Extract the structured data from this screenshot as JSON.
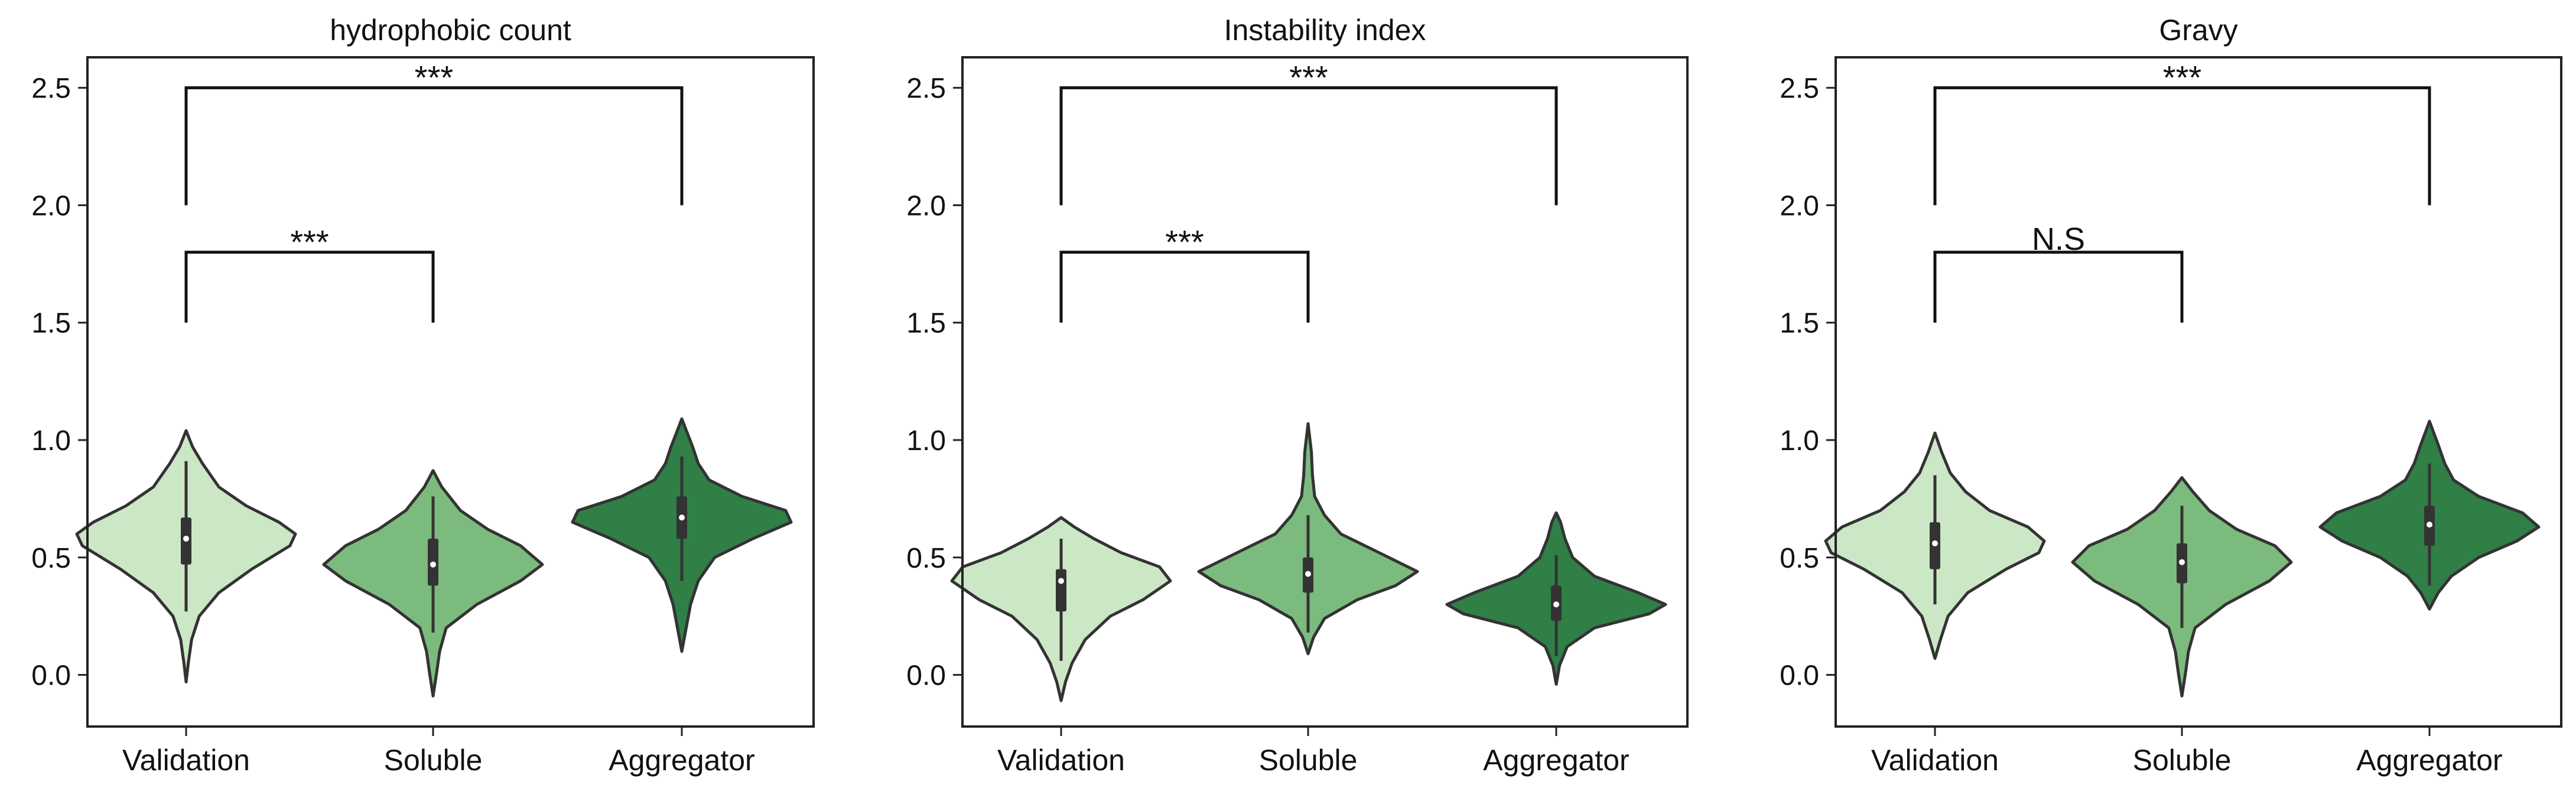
{
  "chart_data": [
    {
      "type": "violin",
      "title": "hydrophobic count",
      "categories": [
        "Validation",
        "Soluble",
        "Aggregator"
      ],
      "ylim": [
        -0.22,
        2.63
      ],
      "yticks": [
        "0.0",
        "0.5",
        "1.0",
        "1.5",
        "2.0",
        "2.5"
      ],
      "ytick_values": [
        0.0,
        0.5,
        1.0,
        1.5,
        2.0,
        2.5
      ],
      "violins": [
        {
          "category": "Validation",
          "extent": [
            -0.03,
            1.04
          ],
          "median": 0.58,
          "q1": 0.47,
          "q3": 0.67,
          "whisker": [
            0.27,
            0.91
          ],
          "profile": [
            [
              -0.03,
              0.0
            ],
            [
              0.05,
              0.02
            ],
            [
              0.15,
              0.05
            ],
            [
              0.25,
              0.12
            ],
            [
              0.35,
              0.3
            ],
            [
              0.45,
              0.6
            ],
            [
              0.55,
              0.95
            ],
            [
              0.6,
              1.0
            ],
            [
              0.65,
              0.85
            ],
            [
              0.72,
              0.55
            ],
            [
              0.8,
              0.3
            ],
            [
              0.9,
              0.15
            ],
            [
              0.97,
              0.06
            ],
            [
              1.04,
              0.0
            ]
          ]
        },
        {
          "category": "Soluble",
          "extent": [
            -0.09,
            0.87
          ],
          "median": 0.47,
          "q1": 0.38,
          "q3": 0.58,
          "whisker": [
            0.18,
            0.76
          ],
          "profile": [
            [
              -0.09,
              0.0
            ],
            [
              0.0,
              0.03
            ],
            [
              0.1,
              0.06
            ],
            [
              0.2,
              0.12
            ],
            [
              0.3,
              0.4
            ],
            [
              0.4,
              0.8
            ],
            [
              0.47,
              1.0
            ],
            [
              0.55,
              0.8
            ],
            [
              0.62,
              0.5
            ],
            [
              0.7,
              0.25
            ],
            [
              0.8,
              0.08
            ],
            [
              0.87,
              0.0
            ]
          ]
        },
        {
          "category": "Aggregator",
          "extent": [
            0.1,
            1.09
          ],
          "median": 0.67,
          "q1": 0.58,
          "q3": 0.76,
          "whisker": [
            0.4,
            0.93
          ],
          "profile": [
            [
              0.1,
              0.0
            ],
            [
              0.2,
              0.04
            ],
            [
              0.3,
              0.08
            ],
            [
              0.4,
              0.15
            ],
            [
              0.5,
              0.3
            ],
            [
              0.58,
              0.65
            ],
            [
              0.65,
              1.0
            ],
            [
              0.7,
              0.95
            ],
            [
              0.76,
              0.55
            ],
            [
              0.83,
              0.25
            ],
            [
              0.9,
              0.15
            ],
            [
              0.97,
              0.1
            ],
            [
              1.03,
              0.05
            ],
            [
              1.09,
              0.0
            ]
          ]
        }
      ],
      "significance": [
        {
          "pair": [
            "Validation",
            "Soluble"
          ],
          "y": 1.8,
          "drop_to": 1.5,
          "label": "***"
        },
        {
          "pair": [
            "Validation",
            "Aggregator"
          ],
          "y": 2.5,
          "drop_to": 2.0,
          "label": "***"
        }
      ]
    },
    {
      "type": "violin",
      "title": "Instability index",
      "categories": [
        "Validation",
        "Soluble",
        "Aggregator"
      ],
      "ylim": [
        -0.22,
        2.63
      ],
      "yticks": [
        "0.0",
        "0.5",
        "1.0",
        "1.5",
        "2.0",
        "2.5"
      ],
      "ytick_values": [
        0.0,
        0.5,
        1.0,
        1.5,
        2.0,
        2.5
      ],
      "violins": [
        {
          "category": "Validation",
          "extent": [
            -0.11,
            0.67
          ],
          "median": 0.4,
          "q1": 0.27,
          "q3": 0.45,
          "whisker": [
            0.06,
            0.58
          ],
          "profile": [
            [
              -0.11,
              0.0
            ],
            [
              -0.03,
              0.04
            ],
            [
              0.05,
              0.1
            ],
            [
              0.15,
              0.22
            ],
            [
              0.25,
              0.45
            ],
            [
              0.32,
              0.75
            ],
            [
              0.4,
              1.0
            ],
            [
              0.46,
              0.9
            ],
            [
              0.52,
              0.55
            ],
            [
              0.58,
              0.3
            ],
            [
              0.63,
              0.12
            ],
            [
              0.67,
              0.0
            ]
          ]
        },
        {
          "category": "Soluble",
          "extent": [
            0.09,
            1.07
          ],
          "median": 0.43,
          "q1": 0.35,
          "q3": 0.5,
          "whisker": [
            0.18,
            0.68
          ],
          "profile": [
            [
              0.09,
              0.0
            ],
            [
              0.16,
              0.05
            ],
            [
              0.24,
              0.15
            ],
            [
              0.32,
              0.45
            ],
            [
              0.38,
              0.8
            ],
            [
              0.44,
              1.0
            ],
            [
              0.52,
              0.65
            ],
            [
              0.6,
              0.3
            ],
            [
              0.68,
              0.15
            ],
            [
              0.76,
              0.06
            ],
            [
              0.85,
              0.04
            ],
            [
              0.95,
              0.03
            ],
            [
              1.07,
              0.0
            ]
          ]
        },
        {
          "category": "Aggregator",
          "extent": [
            -0.04,
            0.69
          ],
          "median": 0.3,
          "q1": 0.23,
          "q3": 0.38,
          "whisker": [
            0.08,
            0.51
          ],
          "profile": [
            [
              -0.04,
              0.0
            ],
            [
              0.04,
              0.03
            ],
            [
              0.12,
              0.1
            ],
            [
              0.2,
              0.35
            ],
            [
              0.26,
              0.85
            ],
            [
              0.3,
              1.0
            ],
            [
              0.35,
              0.75
            ],
            [
              0.42,
              0.35
            ],
            [
              0.5,
              0.15
            ],
            [
              0.58,
              0.08
            ],
            [
              0.65,
              0.04
            ],
            [
              0.69,
              0.0
            ]
          ]
        }
      ],
      "significance": [
        {
          "pair": [
            "Validation",
            "Soluble"
          ],
          "y": 1.8,
          "drop_to": 1.5,
          "label": "***"
        },
        {
          "pair": [
            "Validation",
            "Aggregator"
          ],
          "y": 2.5,
          "drop_to": 2.0,
          "label": "***"
        }
      ]
    },
    {
      "type": "violin",
      "title": "Gravy",
      "categories": [
        "Validation",
        "Soluble",
        "Aggregator"
      ],
      "ylim": [
        -0.22,
        2.63
      ],
      "yticks": [
        "0.0",
        "0.5",
        "1.0",
        "1.5",
        "2.0",
        "2.5"
      ],
      "ytick_values": [
        0.0,
        0.5,
        1.0,
        1.5,
        2.0,
        2.5
      ],
      "violins": [
        {
          "category": "Validation",
          "extent": [
            0.07,
            1.03
          ],
          "median": 0.56,
          "q1": 0.45,
          "q3": 0.65,
          "whisker": [
            0.3,
            0.85
          ],
          "profile": [
            [
              0.07,
              0.0
            ],
            [
              0.15,
              0.05
            ],
            [
              0.25,
              0.12
            ],
            [
              0.35,
              0.3
            ],
            [
              0.45,
              0.65
            ],
            [
              0.52,
              0.95
            ],
            [
              0.57,
              1.0
            ],
            [
              0.63,
              0.85
            ],
            [
              0.7,
              0.5
            ],
            [
              0.78,
              0.28
            ],
            [
              0.86,
              0.14
            ],
            [
              0.95,
              0.06
            ],
            [
              1.03,
              0.0
            ]
          ]
        },
        {
          "category": "Soluble",
          "extent": [
            -0.09,
            0.84
          ],
          "median": 0.48,
          "q1": 0.39,
          "q3": 0.56,
          "whisker": [
            0.2,
            0.72
          ],
          "profile": [
            [
              -0.09,
              0.0
            ],
            [
              0.0,
              0.03
            ],
            [
              0.1,
              0.06
            ],
            [
              0.2,
              0.12
            ],
            [
              0.3,
              0.4
            ],
            [
              0.4,
              0.8
            ],
            [
              0.48,
              1.0
            ],
            [
              0.55,
              0.85
            ],
            [
              0.62,
              0.5
            ],
            [
              0.7,
              0.25
            ],
            [
              0.78,
              0.1
            ],
            [
              0.84,
              0.0
            ]
          ]
        },
        {
          "category": "Aggregator",
          "extent": [
            0.28,
            1.08
          ],
          "median": 0.64,
          "q1": 0.55,
          "q3": 0.72,
          "whisker": [
            0.38,
            0.9
          ],
          "profile": [
            [
              0.28,
              0.0
            ],
            [
              0.35,
              0.08
            ],
            [
              0.42,
              0.2
            ],
            [
              0.5,
              0.45
            ],
            [
              0.57,
              0.8
            ],
            [
              0.63,
              1.0
            ],
            [
              0.69,
              0.85
            ],
            [
              0.76,
              0.45
            ],
            [
              0.83,
              0.22
            ],
            [
              0.9,
              0.14
            ],
            [
              0.98,
              0.08
            ],
            [
              1.08,
              0.0
            ]
          ]
        }
      ],
      "significance": [
        {
          "pair": [
            "Validation",
            "Soluble"
          ],
          "y": 1.8,
          "drop_to": 1.5,
          "label": "N.S"
        },
        {
          "pair": [
            "Validation",
            "Aggregator"
          ],
          "y": 2.5,
          "drop_to": 2.0,
          "label": "***"
        }
      ]
    }
  ],
  "colors": {
    "Validation": "#cce7c6",
    "Soluble": "#7cbb7e",
    "Aggregator": "#2f7f47",
    "outline": "#333333",
    "box": "#333333",
    "median": "#ffffff",
    "bracket": "#111111"
  }
}
